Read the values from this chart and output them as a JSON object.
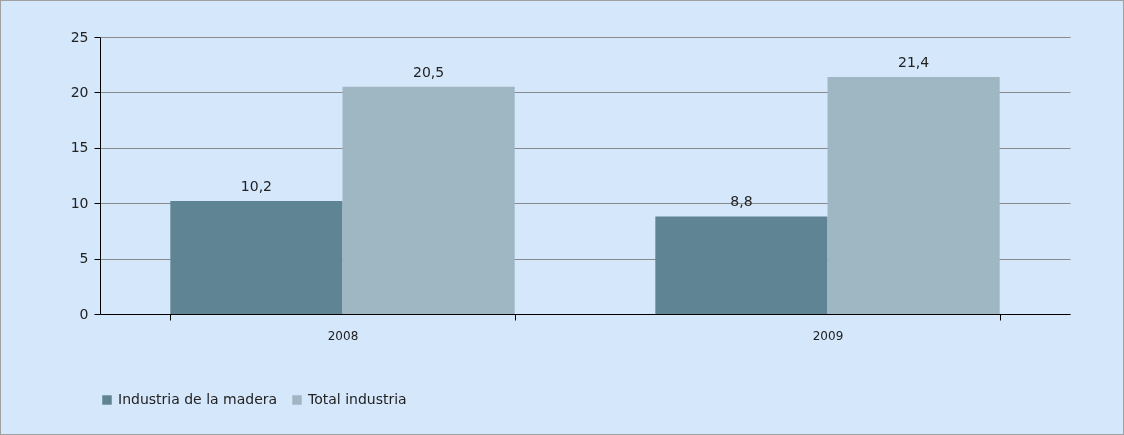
{
  "chart_data": {
    "type": "bar",
    "categories": [
      "2008",
      "2009"
    ],
    "series": [
      {
        "name": "Industria de la madera",
        "color": "#5f8595",
        "values": [
          10.2,
          8.8
        ],
        "value_labels": [
          "10,2",
          "8,8"
        ]
      },
      {
        "name": "Total industria",
        "color": "#9fb7c3",
        "values": [
          20.5,
          21.4
        ],
        "value_labels": [
          "20,5",
          "21,4"
        ]
      }
    ],
    "ylim": [
      0,
      25
    ],
    "yticks": [
      0,
      5,
      10,
      15,
      20,
      25
    ],
    "grid": "y",
    "legend": "bottom"
  }
}
